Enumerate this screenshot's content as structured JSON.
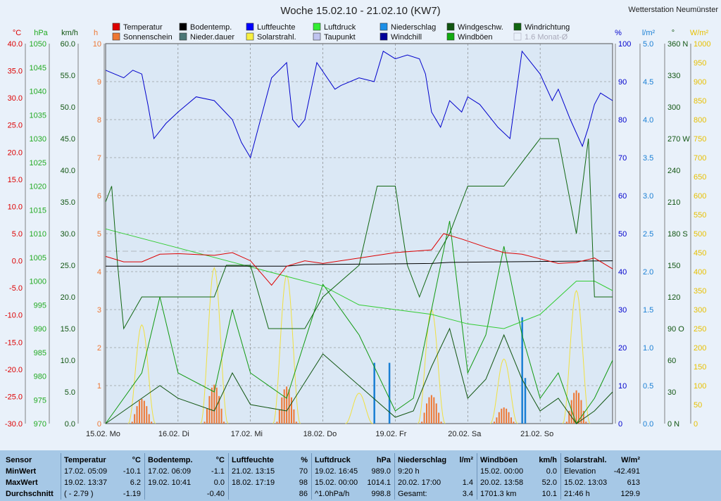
{
  "title": "Woche 15.02.10 - 21.02.10 (KW7)",
  "station": "Wetterstation Neumünster",
  "colors": {
    "temperatur": "#dd0000",
    "bodentemp": "#000000",
    "luftfeuchte": "#0000cc",
    "luftdruck": "#33cc33",
    "niederschlag": "#1a7fd4",
    "windgeschw": "#115511",
    "windrichtung": "#116611",
    "sonnenschein": "#ee7733",
    "niederdauer": "#4a7777",
    "solarstrahl": "#f0e040",
    "taupunkt": "#aab0e8",
    "windchill": "#000099",
    "windboeen": "#119911",
    "monat": "#b0b8c0"
  },
  "legend": [
    {
      "label": "Temperatur",
      "color": "#dd0000"
    },
    {
      "label": "Bodentemp.",
      "color": "#000000"
    },
    {
      "label": "Luftfeuchte",
      "color": "#0000ff"
    },
    {
      "label": "Luftdruck",
      "color": "#33ee33"
    },
    {
      "label": "Niederschlag",
      "color": "#1a8fe8"
    },
    {
      "label": "Windgeschw.",
      "color": "#115511"
    },
    {
      "label": "Windrichtung",
      "color": "#116611"
    },
    {
      "label": "Sonnenschein",
      "color": "#ee7733"
    },
    {
      "label": "Nieder.dauer",
      "color": "#4a7777"
    },
    {
      "label": "Solarstrahl.",
      "color": "#f8f040"
    },
    {
      "label": "Taupunkt",
      "color": "#c0c4f0"
    },
    {
      "label": "Windchill",
      "color": "#000099"
    },
    {
      "label": "Windböen",
      "color": "#11aa11"
    },
    {
      "label": "1.6 Monat-Ø",
      "color": "#e9f1fa",
      "faded": true
    }
  ],
  "axes_left": [
    {
      "unit": "°C",
      "color": "#dd0000",
      "ticks": [
        "40.0",
        "35.0",
        "30.0",
        "25.0",
        "20.0",
        "15.0",
        "10.0",
        "5.0",
        "0.0",
        "-5.0",
        "-10.0",
        "-15.0",
        "-20.0",
        "-25.0",
        "-30.0"
      ]
    },
    {
      "unit": "hPa",
      "color": "#22aa22",
      "ticks": [
        "1050",
        "1045",
        "1040",
        "1035",
        "1030",
        "1025",
        "1020",
        "1015",
        "1010",
        "1005",
        "1000",
        "995",
        "990",
        "985",
        "980",
        "975",
        "970"
      ]
    },
    {
      "unit": "km/h",
      "color": "#115511",
      "ticks": [
        "60.0",
        "55.0",
        "50.0",
        "45.0",
        "40.0",
        "35.0",
        "30.0",
        "25.0",
        "20.0",
        "15.0",
        "10.0",
        "5.0",
        "0.0"
      ]
    },
    {
      "unit": "h",
      "color": "#ee7733",
      "ticks": [
        "10",
        "9",
        "8",
        "7",
        "6",
        "5",
        "4",
        "3",
        "2",
        "1",
        "0"
      ]
    }
  ],
  "axes_right": [
    {
      "unit": "%",
      "color": "#0000cc",
      "ticks": [
        "100",
        "90",
        "80",
        "70",
        "60",
        "50",
        "40",
        "30",
        "20",
        "10",
        "0"
      ]
    },
    {
      "unit": "l/m²",
      "color": "#1a7fd4",
      "ticks": [
        "5.0",
        "4.5",
        "4.0",
        "3.5",
        "3.0",
        "2.5",
        "2.0",
        "1.5",
        "1.0",
        "0.5",
        "0.0"
      ]
    },
    {
      "unit": "°",
      "color": "#115511",
      "ticks": [
        "360 N",
        "330",
        "300",
        "270 W",
        "240",
        "210",
        "180 S",
        "150",
        "120",
        "90 O",
        "60",
        "30",
        "0 N"
      ]
    },
    {
      "unit": "W/m²",
      "color": "#e8c000",
      "ticks": [
        "1000",
        "950",
        "900",
        "850",
        "800",
        "750",
        "700",
        "650",
        "600",
        "550",
        "500",
        "450",
        "400",
        "350",
        "300",
        "250",
        "200",
        "150",
        "100",
        "50",
        "0"
      ]
    }
  ],
  "days": [
    "15.02.  Mo",
    "16.02.  Di",
    "17.02.  Mi",
    "18.02.  Do",
    "19.02.  Fr",
    "20.02.  Sa",
    "21.02.  So"
  ],
  "chart_data": {
    "type": "line",
    "x_unit": "hours since 15.02. 00:00",
    "temperatur_c": [
      [
        0,
        0.8
      ],
      [
        6,
        -0.2
      ],
      [
        12,
        -0.2
      ],
      [
        18,
        1.2
      ],
      [
        24,
        1.3
      ],
      [
        36,
        1.0
      ],
      [
        42,
        1.5
      ],
      [
        48,
        0.0
      ],
      [
        55,
        -4.5
      ],
      [
        60,
        -1.0
      ],
      [
        66,
        0.0
      ],
      [
        72,
        -0.5
      ],
      [
        84,
        0.5
      ],
      [
        96,
        1.5
      ],
      [
        108,
        2.0
      ],
      [
        112,
        5.0
      ],
      [
        118,
        4.0
      ],
      [
        126,
        2.5
      ],
      [
        132,
        1.5
      ],
      [
        138,
        1.2
      ],
      [
        150,
        -0.5
      ],
      [
        156,
        -0.3
      ],
      [
        162,
        0.5
      ],
      [
        168,
        -1.5
      ]
    ],
    "bodentemp_c": [
      [
        0,
        -1.0
      ],
      [
        60,
        -1.0
      ],
      [
        66,
        -0.7
      ],
      [
        90,
        -0.6
      ],
      [
        108,
        -0.5
      ],
      [
        114,
        -0.3
      ],
      [
        168,
        0.0
      ]
    ],
    "luftfeuchte_pct": [
      [
        0,
        93
      ],
      [
        6,
        91
      ],
      [
        9,
        93
      ],
      [
        12,
        92
      ],
      [
        14,
        84
      ],
      [
        16,
        75
      ],
      [
        20,
        79
      ],
      [
        24,
        82
      ],
      [
        30,
        86
      ],
      [
        36,
        85
      ],
      [
        42,
        80
      ],
      [
        45,
        74
      ],
      [
        48,
        70
      ],
      [
        53,
        85
      ],
      [
        55,
        91
      ],
      [
        60,
        95
      ],
      [
        62,
        80
      ],
      [
        64,
        78
      ],
      [
        66,
        80
      ],
      [
        70,
        95
      ],
      [
        76,
        88
      ],
      [
        78,
        89
      ],
      [
        84,
        91
      ],
      [
        89,
        90
      ],
      [
        92,
        98
      ],
      [
        96,
        96
      ],
      [
        100,
        97
      ],
      [
        104,
        96
      ],
      [
        106,
        92
      ],
      [
        108,
        82
      ],
      [
        111,
        78
      ],
      [
        114,
        85
      ],
      [
        118,
        82
      ],
      [
        120,
        86
      ],
      [
        124,
        84
      ],
      [
        130,
        78
      ],
      [
        134,
        75
      ],
      [
        138,
        98
      ],
      [
        144,
        92
      ],
      [
        148,
        85
      ],
      [
        150,
        88
      ],
      [
        154,
        80
      ],
      [
        158,
        73
      ],
      [
        160,
        78
      ],
      [
        162,
        84
      ],
      [
        164,
        87
      ],
      [
        166,
        86
      ],
      [
        168,
        85
      ]
    ],
    "luftdruck_hpa": [
      [
        0,
        1011
      ],
      [
        24,
        1007
      ],
      [
        48,
        1003
      ],
      [
        72,
        999
      ],
      [
        84,
        995
      ],
      [
        96,
        994
      ],
      [
        108,
        993
      ],
      [
        120,
        991
      ],
      [
        132,
        990
      ],
      [
        144,
        993
      ],
      [
        156,
        1000
      ],
      [
        162,
        1000
      ],
      [
        168,
        998
      ]
    ],
    "windboeen_kmh": [
      [
        0,
        0
      ],
      [
        12,
        8
      ],
      [
        18,
        20
      ],
      [
        24,
        8
      ],
      [
        36,
        5
      ],
      [
        42,
        18
      ],
      [
        48,
        8
      ],
      [
        60,
        4
      ],
      [
        72,
        22
      ],
      [
        84,
        14
      ],
      [
        96,
        2
      ],
      [
        102,
        4
      ],
      [
        108,
        18
      ],
      [
        114,
        32
      ],
      [
        120,
        8
      ],
      [
        126,
        14
      ],
      [
        132,
        28
      ],
      [
        138,
        14
      ],
      [
        144,
        4
      ],
      [
        150,
        8
      ],
      [
        156,
        0
      ],
      [
        162,
        4
      ],
      [
        168,
        10
      ]
    ],
    "windgeschw_kmh": [
      [
        0,
        0
      ],
      [
        12,
        4
      ],
      [
        18,
        6
      ],
      [
        24,
        4
      ],
      [
        36,
        2
      ],
      [
        42,
        8
      ],
      [
        48,
        3
      ],
      [
        60,
        2
      ],
      [
        72,
        11
      ],
      [
        84,
        6
      ],
      [
        96,
        1
      ],
      [
        102,
        2
      ],
      [
        108,
        9
      ],
      [
        114,
        15
      ],
      [
        120,
        4
      ],
      [
        126,
        7
      ],
      [
        132,
        14
      ],
      [
        138,
        7
      ],
      [
        144,
        2
      ],
      [
        150,
        4
      ],
      [
        156,
        0
      ],
      [
        162,
        2
      ],
      [
        168,
        5
      ]
    ],
    "windrichtung_deg": [
      [
        0,
        210
      ],
      [
        2,
        225
      ],
      [
        4,
        150
      ],
      [
        6,
        90
      ],
      [
        12,
        120
      ],
      [
        24,
        120
      ],
      [
        36,
        120
      ],
      [
        40,
        150
      ],
      [
        48,
        150
      ],
      [
        54,
        90
      ],
      [
        66,
        90
      ],
      [
        72,
        120
      ],
      [
        84,
        150
      ],
      [
        90,
        225
      ],
      [
        96,
        225
      ],
      [
        100,
        150
      ],
      [
        104,
        120
      ],
      [
        108,
        150
      ],
      [
        114,
        180
      ],
      [
        120,
        225
      ],
      [
        132,
        225
      ],
      [
        144,
        270
      ],
      [
        150,
        270
      ],
      [
        156,
        180
      ],
      [
        160,
        270
      ],
      [
        162,
        120
      ],
      [
        168,
        120
      ]
    ],
    "solarstrahl_wm2": [
      {
        "day": 0,
        "peak": 260
      },
      {
        "day": 1,
        "peak": 410
      },
      {
        "day": 2,
        "peak": 390
      },
      {
        "day": 3,
        "peak": 80
      },
      {
        "day": 4,
        "peak": 300
      },
      {
        "day": 5,
        "peak": 170
      },
      {
        "day": 6,
        "peak": 350
      }
    ],
    "niederschlag_lm2": [
      [
        89,
        0.8
      ],
      [
        94,
        0.8
      ],
      [
        138,
        1.4
      ],
      [
        139,
        0.6
      ]
    ],
    "ylim_temp": [
      -30,
      40
    ],
    "ylim_pressure": [
      970,
      1050
    ],
    "ylim_wind": [
      0,
      60
    ],
    "ylim_sun_h": [
      0,
      10
    ],
    "ylim_humidity": [
      0,
      100
    ],
    "ylim_rain": [
      0,
      5
    ],
    "ylim_dir": [
      0,
      360
    ],
    "ylim_solar": [
      0,
      1000
    ]
  },
  "stats": {
    "row_labels": [
      "Sensor",
      "MinWert",
      "MaxWert",
      "Durchschnitt"
    ],
    "cols": [
      {
        "name": "Temperatur",
        "unit": "°C",
        "rows": [
          [
            "17.02.  05:09",
            "-10.1"
          ],
          [
            "19.02.  13:37",
            "6.2"
          ],
          [
            "( - 2.79 )",
            "-1.19"
          ]
        ]
      },
      {
        "name": "Bodentemp.",
        "unit": "°C",
        "rows": [
          [
            "17.02.  06:09",
            "-1.1"
          ],
          [
            "19.02.  10:41",
            "0.0"
          ],
          [
            "",
            "-0.40"
          ]
        ]
      },
      {
        "name": "Luftfeuchte",
        "unit": "%",
        "rows": [
          [
            "21.02.  13:15",
            "70"
          ],
          [
            "18.02.  17:19",
            "98"
          ],
          [
            "",
            "86"
          ]
        ]
      },
      {
        "name": "Luftdruck",
        "unit": "hPa",
        "rows": [
          [
            "19.02.  16:45",
            "989.0"
          ],
          [
            "15.02.  00:00",
            "1014.1"
          ],
          [
            "^1.0hPa/h",
            "998.8"
          ]
        ]
      },
      {
        "name": "Niederschlag",
        "unit": "l/m²",
        "rows": [
          [
            "9:20 h",
            ""
          ],
          [
            "20.02.  17:00",
            "1.4"
          ],
          [
            "Gesamt:",
            "3.4"
          ]
        ]
      },
      {
        "name": "Windböen",
        "unit": "km/h",
        "rows": [
          [
            "15.02.  00:00",
            "0.0"
          ],
          [
            "20.02.  13:58",
            "52.0"
          ],
          [
            "1701.3 km",
            "10.1"
          ]
        ]
      },
      {
        "name": "Solarstrahl.",
        "unit": "W/m²",
        "rows": [
          [
            "Elevation",
            "-42.491"
          ],
          [
            "15.02.  13:03",
            "613"
          ],
          [
            "21:46 h",
            "129.9"
          ]
        ]
      }
    ]
  }
}
